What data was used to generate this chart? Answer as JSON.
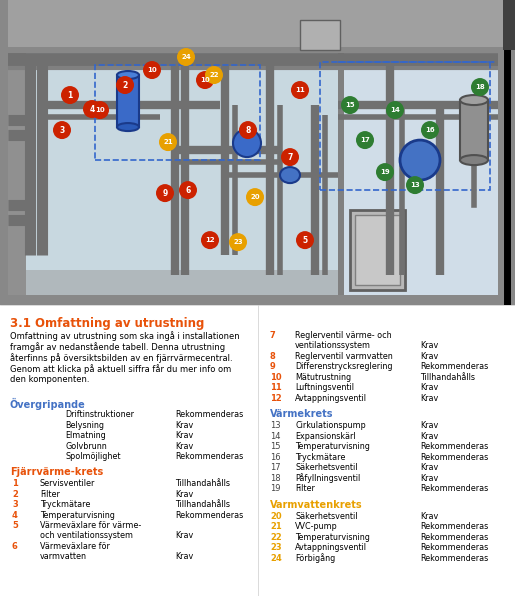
{
  "title": "3.1 Omfattning av utrustning",
  "title_color": "#E8520A",
  "body_text_lines": [
    "Omfattning av utrustning som ska ingå i installationen",
    "framgår av nedanstående tabell. Denna utrustning",
    "återfinns på översiktsbilden av en fjärrvärmecentral.",
    "Genom att klicka på aktuell siffra får du mer info om",
    "den komponenten."
  ],
  "section_overgripande": "Övergripande",
  "overgripande_color": "#4472C4",
  "overgripande_items": [
    [
      "Driftinstruktioner",
      "Rekommenderas"
    ],
    [
      "Belysning",
      "Krav"
    ],
    [
      "Elmatning",
      "Krav"
    ],
    [
      "Golvbrunn",
      "Krav"
    ],
    [
      "Spolmöjlighet",
      "Rekommenderas"
    ]
  ],
  "section_fjarrv": "Fjärrvärme­krets",
  "fjarrv_color": "#E8520A",
  "fjarrv_items": [
    [
      "1",
      "Servisventiler",
      "Tillhandahålls"
    ],
    [
      "2",
      "Filter",
      "Krav"
    ],
    [
      "3",
      "Tryckmätare",
      "Tillhandahålls"
    ],
    [
      "4",
      "Temperaturvisning",
      "Rekommenderas"
    ],
    [
      "5",
      "Värmeväxlare för värme-\noch ventilationssystem",
      "Krav"
    ],
    [
      "6",
      "Värmeväxlare för\nvarmvatten",
      "Krav"
    ]
  ],
  "section_fjarrv2_items": [
    [
      "7",
      "Reglerventil värme- och\nventilationssystem",
      "Krav"
    ],
    [
      "8",
      "Reglerventil varmvatten",
      "Krav"
    ],
    [
      "9",
      "Differenstrycksreglering",
      "Rekommenderas"
    ],
    [
      "10",
      "Mätutrustning",
      "Tillhandahålls"
    ],
    [
      "11",
      "Luftningsventil",
      "Krav"
    ],
    [
      "12",
      "Avtappningsventil",
      "Krav"
    ]
  ],
  "section_varmekrets": "Värmekrets",
  "varmekrets_color": "#4472C4",
  "varmekrets_items": [
    [
      "13",
      "Cirkulationspump",
      "Krav"
    ],
    [
      "14",
      "Expansionskärl",
      "Krav"
    ],
    [
      "15",
      "Temperaturvisning",
      "Rekommenderas"
    ],
    [
      "16",
      "Tryckmätare",
      "Rekommenderas"
    ],
    [
      "17",
      "Säkerhetsventil",
      "Krav"
    ],
    [
      "18",
      "Påfyllningsventil",
      "Krav"
    ],
    [
      "19",
      "Filter",
      "Rekommenderas"
    ]
  ],
  "section_varmvatten": "Varmvattenkrets",
  "varmvatten_color": "#E8A000",
  "varmvatten_items": [
    [
      "20",
      "Säkerhetsventil",
      "Krav"
    ],
    [
      "21",
      "VVC-pump",
      "Rekommenderas"
    ],
    [
      "22",
      "Temperaturvisning",
      "Rekommenderas"
    ],
    [
      "23",
      "Avtappningsventil",
      "Rekommenderas"
    ],
    [
      "24",
      "Förbigång",
      "Rekommenderas"
    ]
  ],
  "badge_red": "#CC2200",
  "badge_orange": "#E8A000",
  "badge_green": "#2E7D32",
  "bg_color": "#FFFFFF",
  "diag_bg_light": "#D8E8F0",
  "diag_bg_dark": "#B0B8C0",
  "pipe_color": "#707070",
  "pipe_color2": "#888888",
  "wall_color": "#909090",
  "door_color": "#AAAAAA"
}
